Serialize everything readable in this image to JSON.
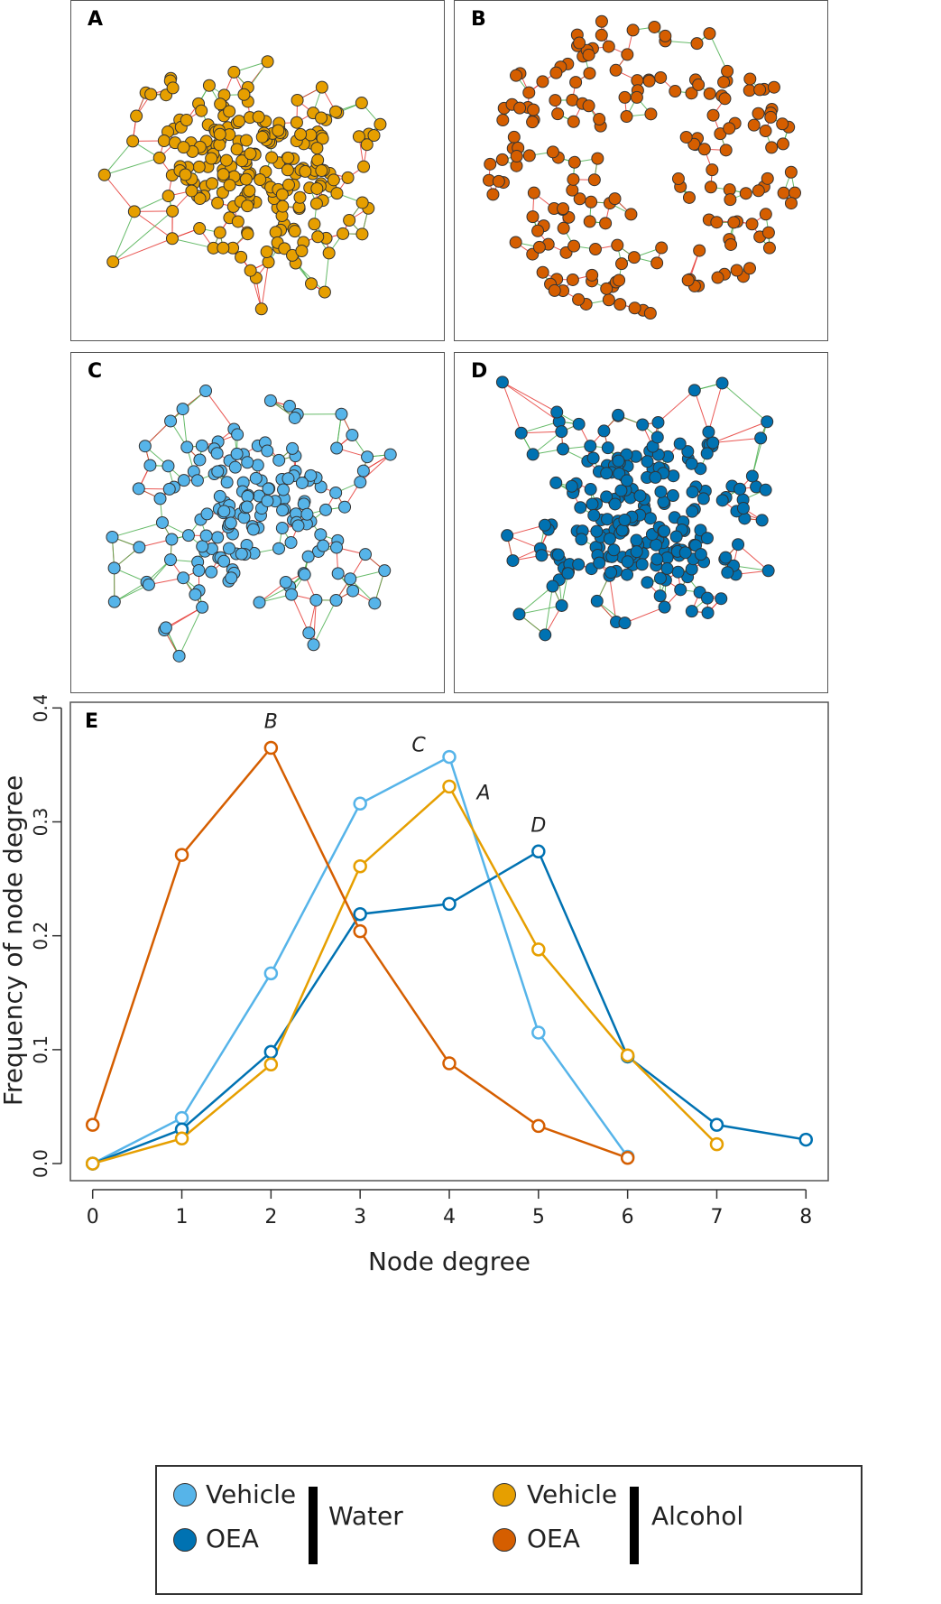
{
  "panels": {
    "a": {
      "label": "A",
      "node_color": "#E69F00",
      "node_count": 230,
      "spread": "dense"
    },
    "b": {
      "label": "B",
      "node_color": "#D55E00",
      "node_count": 190,
      "spread": "ring"
    },
    "c": {
      "label": "C",
      "node_color": "#56B4E9",
      "node_count": 170,
      "spread": "medium"
    },
    "d": {
      "label": "D",
      "node_color": "#0072B2",
      "node_count": 230,
      "spread": "dense"
    }
  },
  "edge_colors": {
    "positive": "#4CAF50",
    "negative": "#E53935"
  },
  "chart_panel_label": "E",
  "chart_data": {
    "type": "line",
    "xlabel": "Node degree",
    "ylabel": "Frequency of node degree",
    "xlim": [
      -0.25,
      8.25
    ],
    "ylim": [
      -0.015,
      0.405
    ],
    "xticks": [
      0,
      1,
      2,
      3,
      4,
      5,
      6,
      7,
      8
    ],
    "yticks": [
      0.0,
      0.1,
      0.2,
      0.3,
      0.4
    ],
    "ytick_labels": [
      "0.0",
      "0.1",
      "0.2",
      "0.3",
      "0.4"
    ],
    "series": [
      {
        "name": "Vehicle Water",
        "label": "C",
        "label_at": 4,
        "color": "#56B4E9",
        "x": [
          0,
          1,
          2,
          3,
          4,
          5,
          6
        ],
        "y": [
          0.0,
          0.04,
          0.167,
          0.316,
          0.357,
          0.115,
          0.006
        ]
      },
      {
        "name": "OEA Water",
        "label": "D",
        "label_at": 5,
        "color": "#0072B2",
        "x": [
          0,
          1,
          2,
          3,
          4,
          5,
          6,
          7,
          8
        ],
        "y": [
          0.0,
          0.03,
          0.098,
          0.219,
          0.228,
          0.274,
          0.094,
          0.034,
          0.021
        ]
      },
      {
        "name": "Vehicle Alcohol",
        "label": "A",
        "label_at": 4,
        "color": "#E69F00",
        "x": [
          0,
          1,
          2,
          3,
          4,
          5,
          6,
          7
        ],
        "y": [
          0.0,
          0.022,
          0.087,
          0.261,
          0.331,
          0.188,
          0.095,
          0.017
        ]
      },
      {
        "name": "OEA Alcohol",
        "label": "B",
        "label_at": 2,
        "color": "#D55E00",
        "x": [
          0,
          1,
          2,
          3,
          4,
          5,
          6
        ],
        "y": [
          0.034,
          0.271,
          0.365,
          0.204,
          0.088,
          0.033,
          0.005
        ]
      }
    ]
  },
  "legend": {
    "water": {
      "vehicle": "Vehicle",
      "oea": "OEA",
      "group": "Water",
      "vehicle_color": "#56B4E9",
      "oea_color": "#0072B2"
    },
    "alcohol": {
      "vehicle": "Vehicle",
      "oea": "OEA",
      "group": "Alcohol",
      "vehicle_color": "#E69F00",
      "oea_color": "#D55E00"
    }
  }
}
